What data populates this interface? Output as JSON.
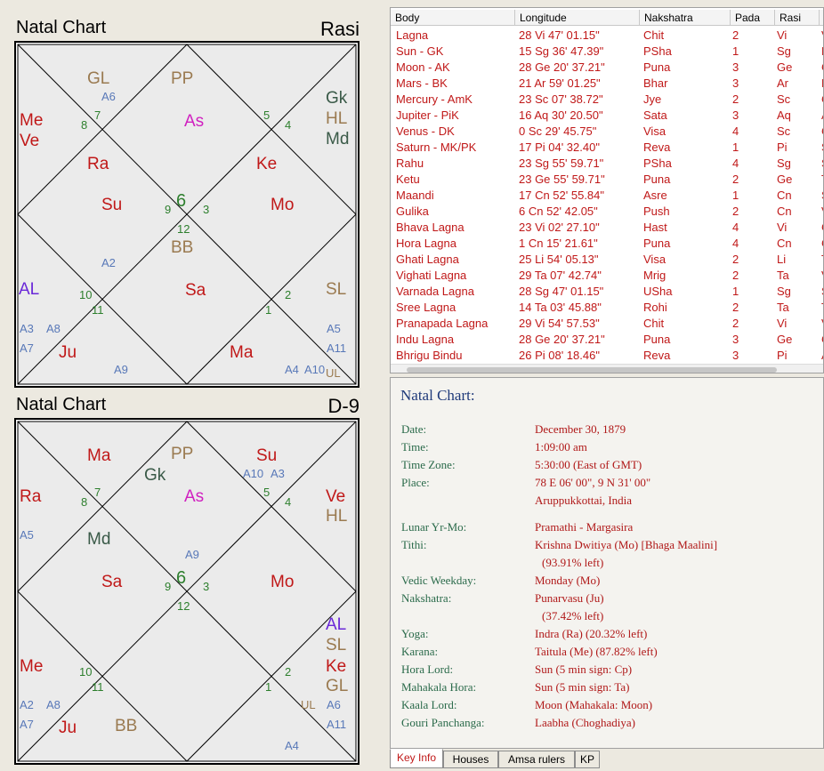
{
  "charts": {
    "rasi": {
      "title": "Natal Chart",
      "division": "Rasi",
      "labels": {
        "gl": "GL",
        "a6": "A6",
        "pp": "PP",
        "gk": "Gk",
        "hl": "HL",
        "md": "Md",
        "me": "Me",
        "ve": "Ve",
        "as": "As",
        "ra": "Ra",
        "ke": "Ke",
        "su": "Su",
        "mo": "Mo",
        "bb": "BB",
        "a2": "A2",
        "al": "AL",
        "sa": "Sa",
        "sl": "SL",
        "a3": "A3",
        "a8": "A8",
        "a5": "A5",
        "a7": "A7",
        "ju": "Ju",
        "ma": "Ma",
        "a11": "A11",
        "a9": "A9",
        "a4": "A4",
        "a10": "A10",
        "ul": "UL"
      },
      "houses": {
        "h1": "6",
        "h2": "5",
        "h3": "4",
        "h4": "3",
        "h5": "2",
        "h6": "1",
        "h7": "12",
        "h8": "11",
        "h9": "10",
        "h10": "9",
        "h11": "8",
        "h12": "7"
      }
    },
    "navamsa": {
      "title": "Natal Chart",
      "division": "D-9",
      "labels": {
        "ma": "Ma",
        "pp": "PP",
        "gk": "Gk",
        "su": "Su",
        "a10": "A10",
        "a3": "A3",
        "ra": "Ra",
        "as": "As",
        "ve": "Ve",
        "hl": "HL",
        "a5": "A5",
        "md": "Md",
        "a9": "A9",
        "sa": "Sa",
        "mo": "Mo",
        "al": "AL",
        "sl": "SL",
        "me": "Me",
        "ke": "Ke",
        "gl": "GL",
        "a2": "A2",
        "a8": "A8",
        "ul": "UL",
        "a6": "A6",
        "a7": "A7",
        "ju": "Ju",
        "bb": "BB",
        "a11": "A11",
        "a4": "A4"
      },
      "houses": {
        "h1": "6",
        "h2": "5",
        "h3": "4",
        "h4": "3",
        "h5": "2",
        "h6": "1",
        "h7": "12",
        "h8": "11",
        "h9": "10",
        "h10": "9",
        "h11": "8",
        "h12": "7"
      }
    }
  },
  "table": {
    "headers": [
      "Body",
      "Longitude",
      "Nakshatra",
      "Pada",
      "Rasi",
      ""
    ],
    "rows": [
      {
        "body": "Lagna",
        "longitude": "28 Vi 47' 01.15\"",
        "nakshatra": "Chit",
        "pada": "2",
        "rasi": "Vi",
        "extra": "V"
      },
      {
        "body": "Sun - GK",
        "longitude": "15 Sg 36' 47.39\"",
        "nakshatra": "PSha",
        "pada": "1",
        "rasi": "Sg",
        "extra": "L"
      },
      {
        "body": "Moon - AK",
        "longitude": "28 Ge 20' 37.21\"",
        "nakshatra": "Puna",
        "pada": "3",
        "rasi": "Ge",
        "extra": "C"
      },
      {
        "body": "Mars - BK",
        "longitude": "21 Ar 59' 01.25\"",
        "nakshatra": "Bhar",
        "pada": "3",
        "rasi": "Ar",
        "extra": "L"
      },
      {
        "body": "Mercury - AmK",
        "longitude": "23 Sc 07' 38.72\"",
        "nakshatra": "Jye",
        "pada": "2",
        "rasi": "Sc",
        "extra": "C"
      },
      {
        "body": "Jupiter - PiK",
        "longitude": "16 Aq 30' 20.50\"",
        "nakshatra": "Sata",
        "pada": "3",
        "rasi": "Aq",
        "extra": "A"
      },
      {
        "body": "Venus - DK",
        "longitude": "0 Sc 29' 45.75\"",
        "nakshatra": "Visa",
        "pada": "4",
        "rasi": "Sc",
        "extra": "C"
      },
      {
        "body": "Saturn - MK/PK",
        "longitude": "17 Pi 04' 32.40\"",
        "nakshatra": "Reva",
        "pada": "1",
        "rasi": "Pi",
        "extra": "S"
      },
      {
        "body": "Rahu",
        "longitude": "23 Sg 55' 59.71\"",
        "nakshatra": "PSha",
        "pada": "4",
        "rasi": "Sg",
        "extra": "S"
      },
      {
        "body": "Ketu",
        "longitude": "23 Ge 55' 59.71\"",
        "nakshatra": "Puna",
        "pada": "2",
        "rasi": "Ge",
        "extra": "T"
      },
      {
        "body": "Maandi",
        "longitude": "17 Cn 52' 55.84\"",
        "nakshatra": "Asre",
        "pada": "1",
        "rasi": "Cn",
        "extra": "S"
      },
      {
        "body": "Gulika",
        "longitude": "6 Cn 52' 42.05\"",
        "nakshatra": "Push",
        "pada": "2",
        "rasi": "Cn",
        "extra": "V"
      },
      {
        "body": "Bhava Lagna",
        "longitude": "23 Vi 02' 27.10\"",
        "nakshatra": "Hast",
        "pada": "4",
        "rasi": "Vi",
        "extra": "C"
      },
      {
        "body": "Hora Lagna",
        "longitude": "1 Cn 15' 21.61\"",
        "nakshatra": "Puna",
        "pada": "4",
        "rasi": "Cn",
        "extra": "C"
      },
      {
        "body": "Ghati Lagna",
        "longitude": "25 Li 54' 05.13\"",
        "nakshatra": "Visa",
        "pada": "2",
        "rasi": "Li",
        "extra": "T"
      },
      {
        "body": "Vighati Lagna",
        "longitude": "29 Ta 07' 42.74\"",
        "nakshatra": "Mrig",
        "pada": "2",
        "rasi": "Ta",
        "extra": "V"
      },
      {
        "body": "Varnada Lagna",
        "longitude": "28 Sg 47' 01.15\"",
        "nakshatra": "USha",
        "pada": "1",
        "rasi": "Sg",
        "extra": "S"
      },
      {
        "body": "Sree Lagna",
        "longitude": "14 Ta 03' 45.88\"",
        "nakshatra": "Rohi",
        "pada": "2",
        "rasi": "Ta",
        "extra": "T"
      },
      {
        "body": "Pranapada Lagna",
        "longitude": "29 Vi 54' 57.53\"",
        "nakshatra": "Chit",
        "pada": "2",
        "rasi": "Vi",
        "extra": "V"
      },
      {
        "body": "Indu Lagna",
        "longitude": "28 Ge 20' 37.21\"",
        "nakshatra": "Puna",
        "pada": "3",
        "rasi": "Ge",
        "extra": "C"
      },
      {
        "body": "Bhrigu Bindu",
        "longitude": "26 Pi 08' 18.46\"",
        "nakshatra": "Reva",
        "pada": "3",
        "rasi": "Pi",
        "extra": "A"
      }
    ]
  },
  "info": {
    "heading": "Natal Chart:",
    "date_label": "Date:",
    "date_value": "December 30, 1879",
    "time_label": "Time:",
    "time_value": "1:09:00 am",
    "tz_label": "Time Zone:",
    "tz_value": "5:30:00 (East of GMT)",
    "place_label": "Place:",
    "place_value": "78 E 06' 00\", 9 N 31' 00\"",
    "place_name": "Aruppukkottai, India",
    "lunar_label": "Lunar Yr-Mo:",
    "lunar_value": "Pramathi - Margasira",
    "tithi_label": "Tithi:",
    "tithi_value": "Krishna Dwitiya (Mo) [Bhaga Maalini]",
    "tithi_left": "(93.91% left)",
    "weekday_label": "Vedic Weekday:",
    "weekday_value": "Monday (Mo)",
    "nakshatra_label": "Nakshatra:",
    "nakshatra_value": "Punarvasu (Ju)",
    "nakshatra_left": "(37.42% left)",
    "yoga_label": "Yoga:",
    "yoga_value": "Indra (Ra) (20.32% left)",
    "karana_label": "Karana:",
    "karana_value": "Taitula (Me) (87.82% left)",
    "hora_label": "Hora Lord:",
    "hora_value": "Sun (5 min sign: Cp)",
    "mahakala_label": "Mahakala Hora:",
    "mahakala_value": "Sun (5 min sign: Ta)",
    "kaala_label": "Kaala Lord:",
    "kaala_value": "Moon (Mahakala: Moon)",
    "gouri_label": "Gouri Panchanga:",
    "gouri_value": "Laabha (Choghadiya)"
  },
  "tabs": [
    "Key Info",
    "Houses",
    "Amsa rulers",
    "KP"
  ],
  "colors": {
    "red": "#c01818",
    "green": "#2d7f2d",
    "olive": "#9a7a50",
    "magenta": "#d020c0",
    "blue": "#5878b8",
    "purple": "#6a28d8",
    "darkgreen": "#3a5a48",
    "label_green": "#2a6a4a",
    "heading_blue": "#1f3a7a"
  }
}
